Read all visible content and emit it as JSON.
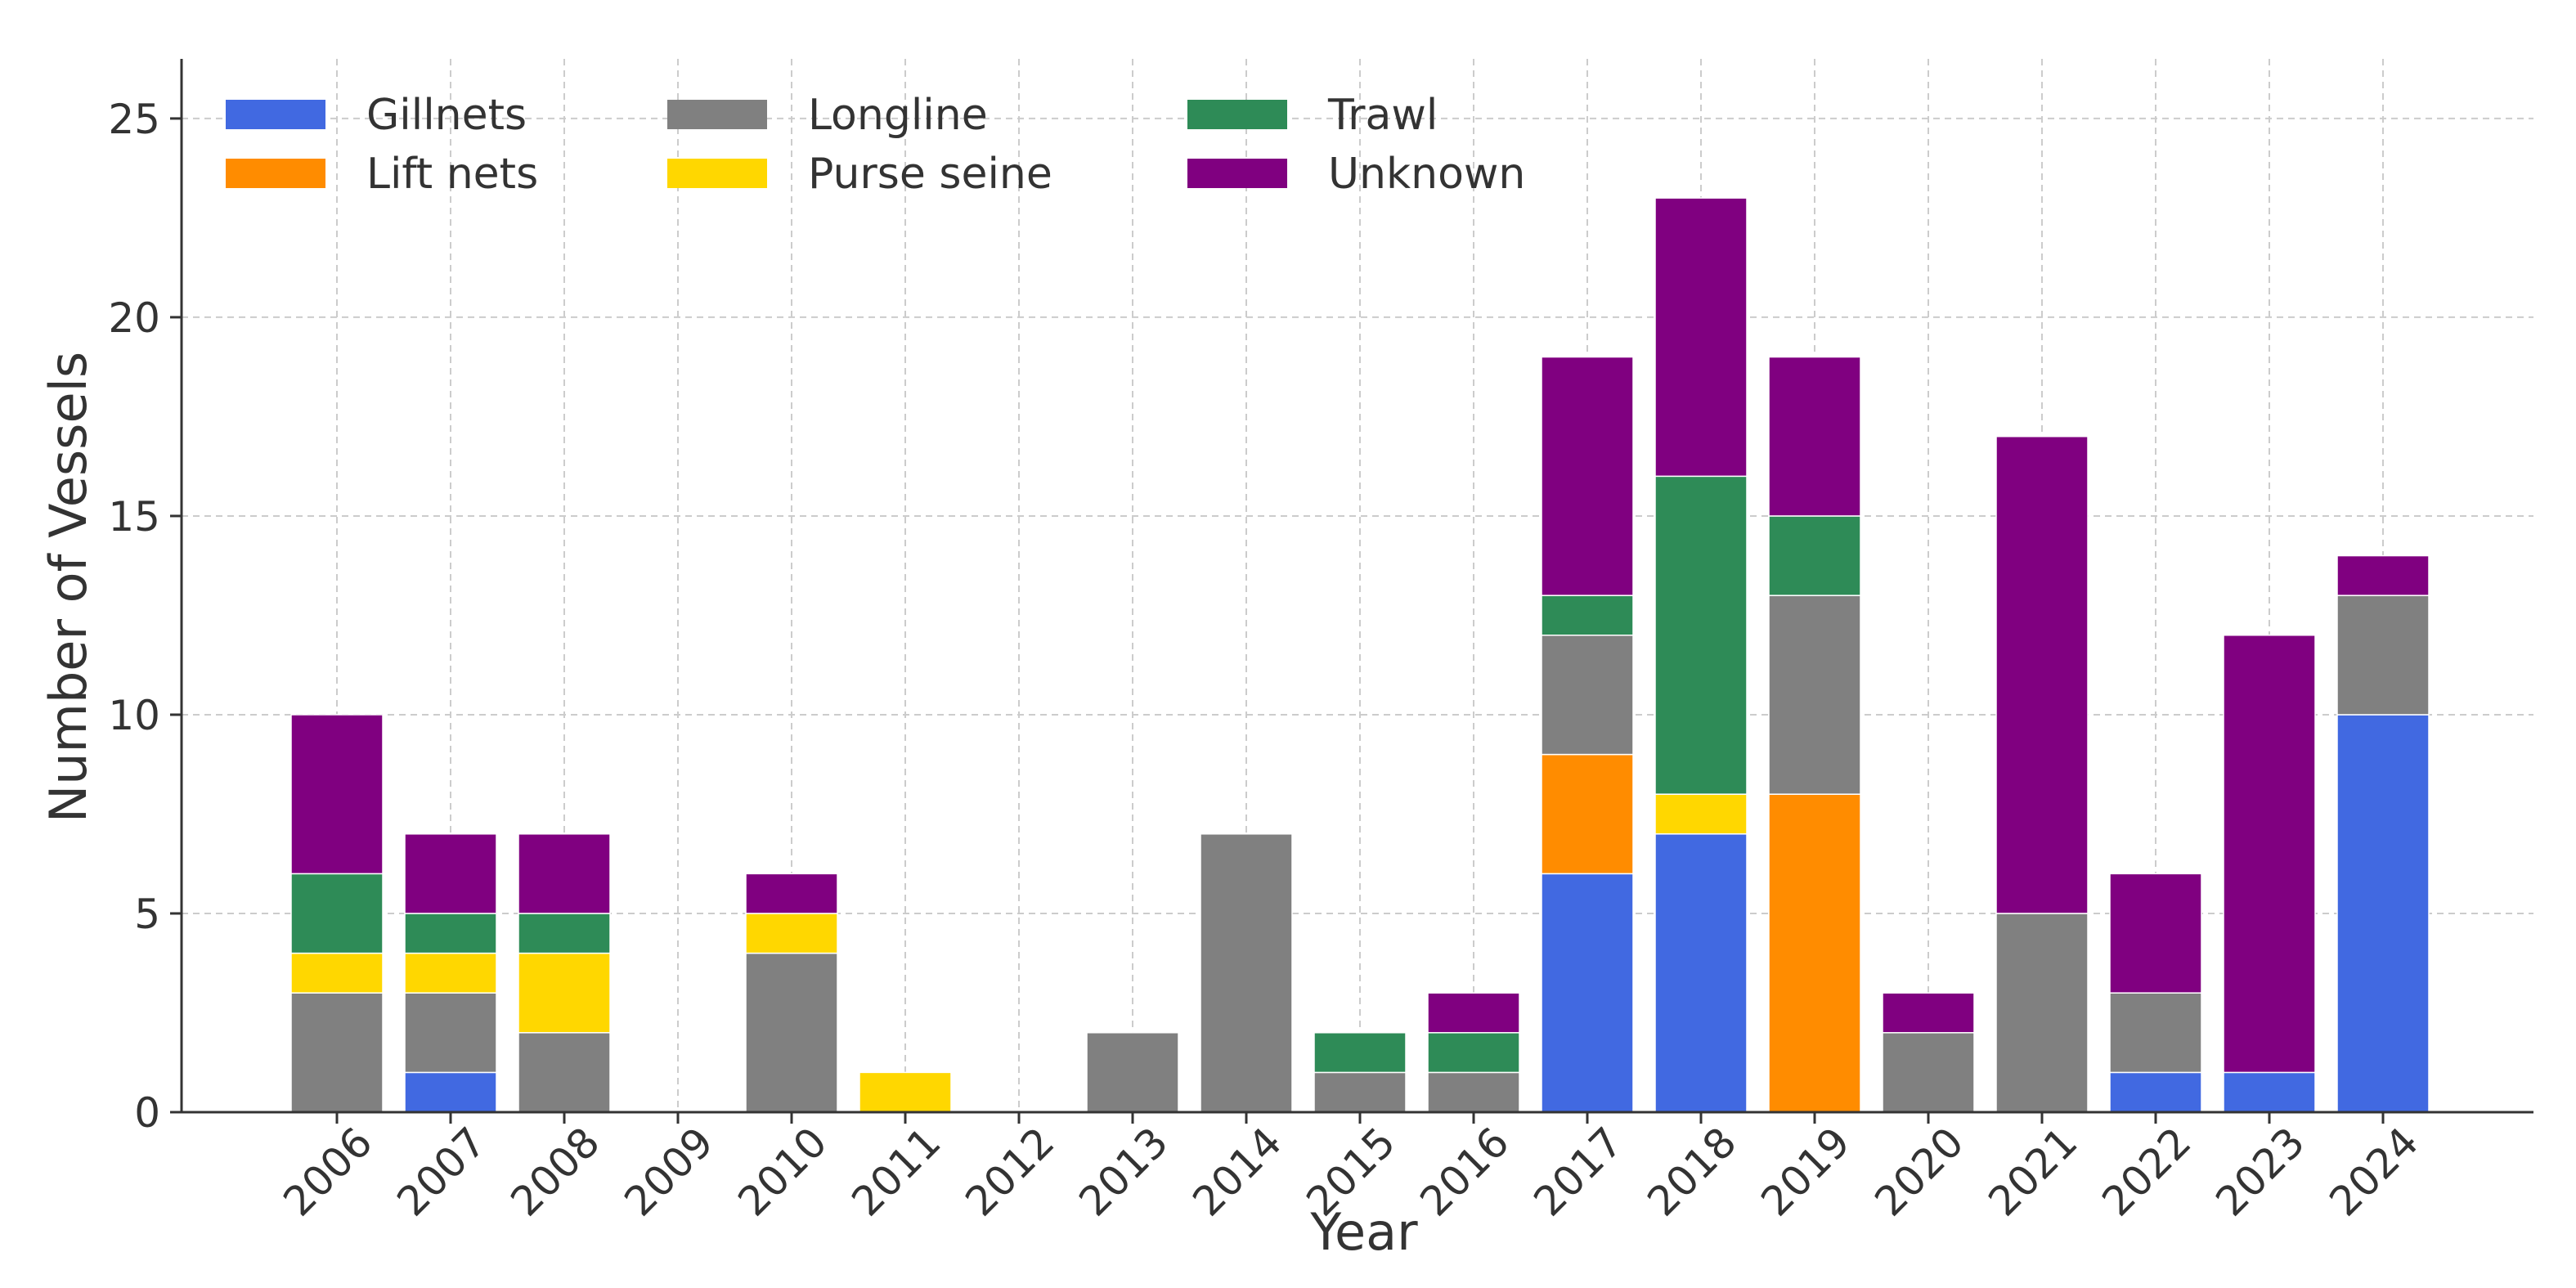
{
  "chart_data": {
    "type": "bar",
    "stacked": true,
    "title": "",
    "xlabel": "Year",
    "ylabel": "Number of Vessels",
    "ylim": [
      0,
      26.5
    ],
    "yticks": [
      0,
      5,
      10,
      15,
      20,
      25
    ],
    "grid": true,
    "legend_position": "top-left",
    "categories": [
      "2006",
      "2007",
      "2008",
      "2009",
      "2010",
      "2011",
      "2012",
      "2013",
      "2014",
      "2015",
      "2016",
      "2017",
      "2018",
      "2019",
      "2020",
      "2021",
      "2022",
      "2023",
      "2024"
    ],
    "series": [
      {
        "name": "Gillnets",
        "color": "#4169E1",
        "values": [
          0,
          1,
          0,
          0,
          0,
          0,
          0,
          0,
          0,
          0,
          0,
          6,
          7,
          0,
          0,
          0,
          1,
          1,
          10
        ]
      },
      {
        "name": "Lift nets",
        "color": "#FF8C00",
        "values": [
          0,
          0,
          0,
          0,
          0,
          0,
          0,
          0,
          0,
          0,
          0,
          3,
          0,
          8,
          0,
          0,
          0,
          0,
          0
        ]
      },
      {
        "name": "Longline",
        "color": "#808080",
        "values": [
          3,
          2,
          2,
          0,
          4,
          0,
          0,
          2,
          7,
          1,
          1,
          3,
          0,
          5,
          2,
          5,
          2,
          0,
          3
        ]
      },
      {
        "name": "Purse seine",
        "color": "#FFD700",
        "values": [
          1,
          1,
          2,
          0,
          1,
          1,
          0,
          0,
          0,
          0,
          0,
          0,
          1,
          0,
          0,
          0,
          0,
          0,
          0
        ]
      },
      {
        "name": "Trawl",
        "color": "#2E8B57",
        "values": [
          2,
          1,
          1,
          0,
          0,
          0,
          0,
          0,
          0,
          1,
          1,
          1,
          8,
          2,
          0,
          0,
          0,
          0,
          0
        ]
      },
      {
        "name": "Unknown",
        "color": "#800080",
        "values": [
          4,
          2,
          2,
          0,
          1,
          0,
          0,
          0,
          0,
          0,
          1,
          6,
          7,
          4,
          1,
          12,
          3,
          11,
          1
        ]
      }
    ]
  }
}
